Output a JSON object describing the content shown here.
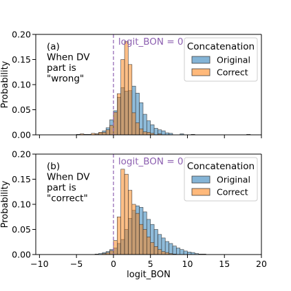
{
  "colors": {
    "original": "#1f77b4",
    "correct": "#ff7f0e",
    "reference_line": "#8c5fb0",
    "axis": "#000000"
  },
  "chart_data": [
    {
      "type": "histogram",
      "panel_text": [
        "(a)",
        "When DV",
        "part is",
        "\"wrong\""
      ],
      "xlabel": "",
      "ylabel": "Probability",
      "xlim": [
        -10.5,
        20
      ],
      "ylim": [
        0,
        0.2
      ],
      "x_ticks": [
        -10,
        -5,
        0,
        5,
        10,
        15,
        20
      ],
      "y_tick_labels": [
        "0.00",
        "0.05",
        "0.10",
        "0.15",
        "0.20"
      ],
      "y_ticks": [
        0,
        0.05,
        0.1,
        0.15,
        0.2
      ],
      "bin_edges_start": -10,
      "bin_width": 0.5,
      "reference_line": {
        "x": 0,
        "label": "logit_BON = 0"
      },
      "legend": {
        "title": "Concatenation",
        "location": "upper right"
      },
      "series": [
        {
          "name": "Original",
          "values": [
            0,
            0,
            0,
            0,
            0,
            0,
            0,
            0,
            0,
            0,
            0,
            0,
            0,
            0,
            0,
            0.002,
            0.004,
            0.008,
            0.014,
            0.03,
            0.048,
            0.075,
            0.094,
            0.087,
            0.088,
            0.097,
            0.083,
            0.064,
            0.041,
            0.028,
            0.02,
            0.013,
            0.01,
            0.008,
            0.004,
            0.003,
            0,
            0,
            0.002,
            0,
            0,
            0.001,
            0,
            0,
            0,
            0,
            0,
            0,
            0,
            0,
            0,
            0,
            0,
            0,
            0,
            0,
            0,
            0
          ]
        },
        {
          "name": "Correct",
          "values": [
            0,
            0,
            0,
            0,
            0,
            0,
            0,
            0,
            0,
            0,
            0.001,
            0.002,
            0.001,
            0.001,
            0.003,
            0.002,
            0.005,
            0.005,
            0.01,
            0.019,
            0.045,
            0.082,
            0.15,
            0.186,
            0.14,
            0.044,
            0.024,
            0.012,
            0.006,
            0.005,
            0.003,
            0,
            0.002,
            0,
            0,
            0,
            0,
            0,
            0,
            0,
            0,
            0,
            0,
            0,
            0,
            0,
            0,
            0,
            0,
            0,
            0,
            0,
            0,
            0,
            0,
            0,
            0.001,
            0
          ]
        }
      ]
    },
    {
      "type": "histogram",
      "panel_text": [
        "(b)",
        "When DV",
        "part is",
        "\"correct\""
      ],
      "xlabel": "logit_BON",
      "ylabel": "Probability",
      "xlim": [
        -10.5,
        20
      ],
      "ylim": [
        0,
        0.2
      ],
      "x_ticks": [
        -10,
        -5,
        0,
        5,
        10,
        15,
        20
      ],
      "x_tick_labels": [
        "−10",
        "−5",
        "0",
        "5",
        "10",
        "15",
        "20"
      ],
      "y_tick_labels": [
        "0.00",
        "0.05",
        "0.10",
        "0.15",
        "0.20"
      ],
      "y_ticks": [
        0,
        0.05,
        0.1,
        0.15,
        0.2
      ],
      "bin_edges_start": -10,
      "bin_width": 0.5,
      "reference_line": {
        "x": 0,
        "label": "logit_BON = 0"
      },
      "legend": {
        "title": "Concatenation",
        "location": "upper right"
      },
      "series": [
        {
          "name": "Original",
          "values": [
            0,
            0,
            0,
            0,
            0,
            0,
            0,
            0,
            0,
            0,
            0,
            0,
            0,
            0,
            0,
            0.001,
            0.002,
            0.004,
            0.006,
            0.01,
            0.013,
            0.022,
            0.03,
            0.05,
            0.072,
            0.088,
            0.097,
            0.094,
            0.085,
            0.07,
            0.06,
            0.05,
            0.04,
            0.033,
            0.026,
            0.022,
            0.017,
            0.013,
            0.01,
            0.007,
            0.005,
            0.004,
            0.002,
            0.001,
            0.001,
            0,
            0,
            0,
            0,
            0,
            0,
            0,
            0,
            0,
            0,
            0,
            0,
            0,
            0
          ]
        },
        {
          "name": "Correct",
          "values": [
            0,
            0,
            0,
            0,
            0,
            0,
            0,
            0,
            0,
            0,
            0,
            0,
            0,
            0,
            0,
            0,
            0,
            0.002,
            0.004,
            0.008,
            0.028,
            0.075,
            0.17,
            0.16,
            0.128,
            0.1,
            0.082,
            0.06,
            0.05,
            0.035,
            0.024,
            0.016,
            0.01,
            0.006,
            0.004,
            0.002,
            0.001,
            0,
            0,
            0,
            0,
            0,
            0,
            0,
            0,
            0,
            0,
            0,
            0,
            0,
            0,
            0,
            0,
            0,
            0,
            0,
            0,
            0,
            0
          ]
        }
      ]
    }
  ]
}
